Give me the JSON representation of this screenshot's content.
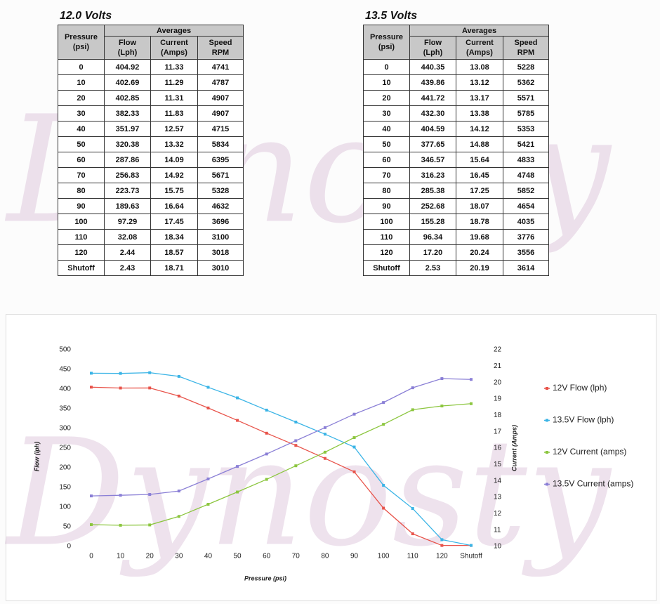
{
  "watermark": "Dynosty",
  "tables": [
    {
      "title": "12.0 Volts",
      "group_header": "Averages",
      "columns": [
        "Pressure\n(psi)",
        "Flow\n(Lph)",
        "Current\n(Amps)",
        "Speed\nRPM"
      ],
      "rows": [
        [
          "0",
          "404.92",
          "11.33",
          "4741"
        ],
        [
          "10",
          "402.69",
          "11.29",
          "4787"
        ],
        [
          "20",
          "402.85",
          "11.31",
          "4907"
        ],
        [
          "30",
          "382.33",
          "11.83",
          "4907"
        ],
        [
          "40",
          "351.97",
          "12.57",
          "4715"
        ],
        [
          "50",
          "320.38",
          "13.32",
          "5834"
        ],
        [
          "60",
          "287.86",
          "14.09",
          "6395"
        ],
        [
          "70",
          "256.83",
          "14.92",
          "5671"
        ],
        [
          "80",
          "223.73",
          "15.75",
          "5328"
        ],
        [
          "90",
          "189.63",
          "16.64",
          "4632"
        ],
        [
          "100",
          "97.29",
          "17.45",
          "3696"
        ],
        [
          "110",
          "32.08",
          "18.34",
          "3100"
        ],
        [
          "120",
          "2.44",
          "18.57",
          "3018"
        ],
        [
          "Shutoff",
          "2.43",
          "18.71",
          "3010"
        ]
      ]
    },
    {
      "title": "13.5 Volts",
      "group_header": "Averages",
      "columns": [
        "Pressure\n(psi)",
        "Flow\n(Lph)",
        "Current\n(Amps)",
        "Speed\nRPM"
      ],
      "rows": [
        [
          "0",
          "440.35",
          "13.08",
          "5228"
        ],
        [
          "10",
          "439.86",
          "13.12",
          "5362"
        ],
        [
          "20",
          "441.72",
          "13.17",
          "5571"
        ],
        [
          "30",
          "432.30",
          "13.38",
          "5785"
        ],
        [
          "40",
          "404.59",
          "14.12",
          "5353"
        ],
        [
          "50",
          "377.65",
          "14.88",
          "5421"
        ],
        [
          "60",
          "346.57",
          "15.64",
          "4833"
        ],
        [
          "70",
          "316.23",
          "16.45",
          "4748"
        ],
        [
          "80",
          "285.38",
          "17.25",
          "5852"
        ],
        [
          "90",
          "252.68",
          "18.07",
          "4654"
        ],
        [
          "100",
          "155.28",
          "18.78",
          "4035"
        ],
        [
          "110",
          "96.34",
          "19.68",
          "3776"
        ],
        [
          "120",
          "17.20",
          "20.24",
          "3556"
        ],
        [
          "Shutoff",
          "2.53",
          "20.19",
          "3614"
        ]
      ]
    }
  ],
  "chart_data": {
    "type": "line",
    "xlabel": "Pressure (psi)",
    "ylabel": "Flow  (lph)",
    "y2label": "Current  (Amps)",
    "categories": [
      "0",
      "10",
      "20",
      "30",
      "40",
      "50",
      "60",
      "70",
      "80",
      "90",
      "100",
      "110",
      "120",
      "Shutoff"
    ],
    "ylim": [
      0,
      500
    ],
    "yticks": [
      0,
      50,
      100,
      150,
      200,
      250,
      300,
      350,
      400,
      450,
      500
    ],
    "y2lim": [
      10,
      22
    ],
    "y2ticks": [
      10,
      11,
      12,
      13,
      14,
      15,
      16,
      17,
      18,
      19,
      20,
      21,
      22
    ],
    "legend": "right",
    "series": [
      {
        "name": "12V Flow (lph)",
        "color": "#e8534a",
        "values": [
          404.92,
          402.69,
          402.85,
          382.33,
          351.97,
          320.38,
          287.86,
          256.83,
          223.73,
          189.63,
          97.29,
          32.08,
          2.44,
          2.43
        ]
      },
      {
        "name": "13.5V Flow (lph)",
        "color": "#3ab4e6",
        "values": [
          440.35,
          439.86,
          441.72,
          432.3,
          404.59,
          377.65,
          346.57,
          316.23,
          285.38,
          252.68,
          155.28,
          96.34,
          17.2,
          2.53
        ]
      },
      {
        "name": "12V Current (amps)",
        "color": "#8cc63f",
        "axis": "y2",
        "values": [
          11.33,
          11.29,
          11.31,
          11.83,
          12.57,
          13.32,
          14.09,
          14.92,
          15.75,
          16.64,
          17.45,
          18.34,
          18.57,
          18.71
        ]
      },
      {
        "name": "13.5V Current (amps)",
        "color": "#8a7fd6",
        "axis": "y2",
        "values": [
          13.08,
          13.12,
          13.17,
          13.38,
          14.12,
          14.88,
          15.64,
          16.45,
          17.25,
          18.07,
          18.78,
          19.68,
          20.24,
          20.19
        ]
      }
    ]
  }
}
